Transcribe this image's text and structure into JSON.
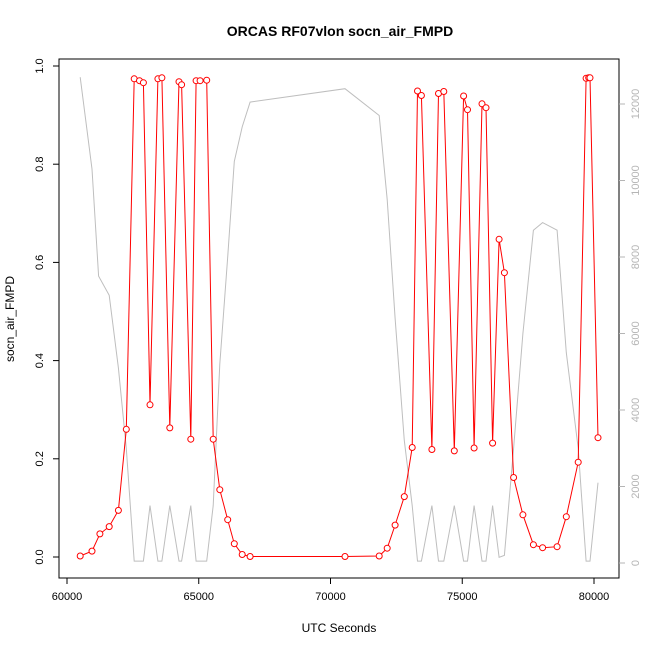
{
  "chart_data": {
    "type": "line",
    "title": "ORCAS RF07vlon socn_air_FMPD",
    "xlabel": "UTC Seconds",
    "ylabel": "socn_air_FMPD",
    "xlim": [
      60000,
      81000
    ],
    "ylim": [
      0,
      1.0
    ],
    "ylim_right": [
      0,
      13000
    ],
    "x_ticks": [
      60000,
      65000,
      70000,
      75000,
      80000
    ],
    "x_tick_labels": [
      "60000",
      "65000",
      "70000",
      "75000",
      "80000"
    ],
    "y_ticks": [
      0.0,
      0.2,
      0.4,
      0.6,
      0.8,
      1.0
    ],
    "y_tick_labels": [
      "0.0",
      "0.2",
      "0.4",
      "0.6",
      "0.8",
      "1.0"
    ],
    "y_right_ticks": [
      0,
      2000,
      4000,
      6000,
      8000,
      10000,
      12000
    ],
    "y_right_tick_labels": [
      "0",
      "2000",
      "4000",
      "6000",
      "8000",
      "10000",
      "12000"
    ],
    "grid": false,
    "colors": {
      "primary": "#ff0000",
      "secondary": "#bebebe",
      "axis": "#000000",
      "right_axis": "#b5b5b5"
    },
    "series": [
      {
        "axis": "left",
        "style": "line+points",
        "x": [
          60500,
          60950,
          61250,
          61600,
          61950,
          62250,
          62550,
          62750,
          62900,
          63150,
          63450,
          63600,
          63900,
          64250,
          64350,
          64700,
          64900,
          65050,
          65300,
          65550,
          65800,
          66100,
          66350,
          66650,
          66950,
          70550,
          71850,
          72150,
          72450,
          72800,
          73100,
          73300,
          73450,
          73850,
          74100,
          74300,
          74700,
          75050,
          75200,
          75450,
          75750,
          75900,
          76150,
          76400,
          76600,
          76950,
          77300,
          77700,
          78050,
          78600,
          78950,
          79400,
          79700,
          79800,
          79850,
          80150
        ],
        "values": [
          0.002,
          0.012,
          0.047,
          0.062,
          0.095,
          0.26,
          0.974,
          0.97,
          0.966,
          0.31,
          0.974,
          0.976,
          0.263,
          0.968,
          0.962,
          0.24,
          0.97,
          0.97,
          0.971,
          0.24,
          0.137,
          0.076,
          0.027,
          0.005,
          0.001,
          0.001,
          0.002,
          0.018,
          0.065,
          0.123,
          0.223,
          0.949,
          0.94,
          0.219,
          0.944,
          0.948,
          0.216,
          0.939,
          0.911,
          0.222,
          0.923,
          0.915,
          0.232,
          0.647,
          0.579,
          0.162,
          0.086,
          0.025,
          0.019,
          0.021,
          0.082,
          0.193,
          0.975,
          0.976,
          0.976,
          0.243
        ]
      },
      {
        "axis": "right",
        "style": "line",
        "x": [
          60500,
          60950,
          61200,
          61600,
          61950,
          62250,
          62550,
          62900,
          63150,
          63450,
          63600,
          63900,
          64250,
          64350,
          64700,
          64900,
          65050,
          65300,
          65550,
          65800,
          66100,
          66350,
          66650,
          66950,
          70550,
          71850,
          72150,
          72450,
          72800,
          73100,
          73300,
          73450,
          73850,
          74100,
          74300,
          74700,
          75050,
          75200,
          75450,
          75750,
          75900,
          76150,
          76400,
          76600,
          76950,
          77300,
          77700,
          78050,
          78600,
          78950,
          79400,
          79700,
          79800,
          79850,
          80150
        ],
        "values": [
          12700,
          10300,
          7500,
          7000,
          5100,
          3000,
          50,
          50,
          1500,
          50,
          50,
          1500,
          50,
          50,
          1500,
          50,
          50,
          50,
          1500,
          5200,
          8000,
          10500,
          11400,
          12050,
          12400,
          11700,
          9500,
          6400,
          3200,
          1500,
          50,
          50,
          1500,
          50,
          50,
          1500,
          50,
          50,
          1500,
          50,
          50,
          1500,
          150,
          200,
          3000,
          6000,
          8700,
          8900,
          8700,
          5500,
          3000,
          50,
          50,
          50,
          2100
        ]
      }
    ]
  }
}
